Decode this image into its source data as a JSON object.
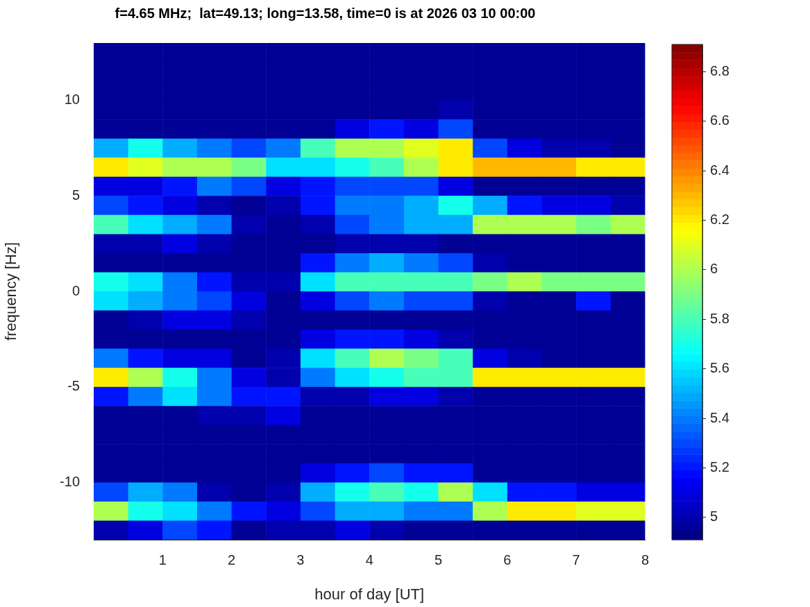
{
  "chart_data": {
    "type": "heatmap",
    "title": "f=4.65 MHz;  lat=49.13; long=13.58, time=0 is at 2026 03 10 00:00",
    "xlabel": "hour of day [UT]",
    "ylabel": "frequency [Hz]",
    "x": [
      0.25,
      0.75,
      1.25,
      1.75,
      2.25,
      2.75,
      3.25,
      3.75,
      4.25,
      4.75,
      5.25,
      5.75,
      6.25,
      6.75,
      7.25,
      7.75
    ],
    "y": [
      12.5,
      11.5,
      10.5,
      9.5,
      8.5,
      7.5,
      6.5,
      5.5,
      4.5,
      3.5,
      2.5,
      1.5,
      0.5,
      -0.5,
      -1.5,
      -2.5,
      -3.5,
      -4.5,
      -5.5,
      -6.5,
      -7.5,
      -8.5,
      -9.5,
      -10.5,
      -11.5,
      -12.5
    ],
    "cells": [
      [
        4.95,
        4.95,
        4.95,
        4.95,
        4.95,
        4.95,
        4.95,
        4.95,
        4.95,
        4.95,
        4.95,
        4.95,
        4.95,
        4.95,
        4.95,
        4.95
      ],
      [
        4.95,
        4.95,
        4.95,
        4.95,
        4.95,
        4.95,
        4.95,
        4.95,
        4.95,
        4.95,
        4.95,
        4.95,
        4.95,
        4.95,
        4.95,
        4.95
      ],
      [
        4.95,
        4.95,
        4.95,
        4.95,
        4.95,
        4.95,
        4.95,
        4.95,
        4.95,
        4.95,
        4.95,
        4.95,
        4.95,
        4.95,
        4.95,
        4.95
      ],
      [
        4.95,
        4.95,
        4.95,
        4.95,
        4.95,
        4.95,
        4.95,
        4.95,
        4.95,
        4.95,
        5.0,
        4.95,
        4.95,
        4.95,
        4.95,
        4.95
      ],
      [
        4.95,
        4.95,
        4.95,
        4.95,
        4.95,
        4.95,
        4.95,
        5.1,
        5.2,
        5.1,
        5.3,
        4.95,
        4.95,
        4.95,
        4.95,
        4.95
      ],
      [
        5.5,
        5.7,
        5.5,
        5.4,
        5.3,
        5.4,
        5.8,
        6.0,
        6.0,
        6.1,
        6.2,
        5.3,
        5.1,
        5.0,
        5.0,
        4.95
      ],
      [
        6.2,
        6.1,
        6.0,
        6.0,
        5.9,
        5.6,
        5.6,
        5.7,
        5.8,
        6.0,
        6.2,
        6.3,
        6.3,
        6.3,
        6.2,
        6.2
      ],
      [
        5.1,
        5.1,
        5.2,
        5.4,
        5.3,
        5.1,
        5.2,
        5.3,
        5.3,
        5.3,
        5.1,
        4.95,
        4.95,
        4.95,
        4.95,
        4.95
      ],
      [
        5.3,
        5.2,
        5.1,
        5.0,
        4.95,
        5.0,
        5.2,
        5.4,
        5.4,
        5.5,
        5.7,
        5.5,
        5.2,
        5.1,
        5.1,
        5.0
      ],
      [
        5.8,
        5.6,
        5.5,
        5.4,
        5.0,
        4.95,
        5.0,
        5.3,
        5.4,
        5.5,
        5.5,
        6.0,
        6.0,
        6.0,
        5.9,
        6.0
      ],
      [
        5.0,
        5.0,
        5.1,
        5.0,
        4.95,
        4.95,
        4.95,
        5.0,
        5.0,
        5.0,
        4.95,
        4.95,
        4.95,
        4.95,
        4.95,
        4.95
      ],
      [
        4.95,
        4.95,
        4.95,
        4.95,
        4.95,
        4.95,
        5.2,
        5.4,
        5.5,
        5.4,
        5.3,
        5.0,
        4.95,
        4.95,
        4.95,
        4.95
      ],
      [
        5.7,
        5.6,
        5.4,
        5.2,
        5.0,
        5.0,
        5.6,
        5.8,
        5.8,
        5.8,
        5.8,
        5.9,
        6.0,
        5.9,
        5.9,
        5.9
      ],
      [
        5.6,
        5.5,
        5.4,
        5.3,
        5.1,
        4.95,
        5.1,
        5.3,
        5.4,
        5.3,
        5.3,
        5.0,
        4.95,
        4.95,
        5.2,
        4.95
      ],
      [
        4.95,
        5.0,
        5.1,
        5.1,
        5.0,
        4.95,
        4.95,
        4.95,
        4.95,
        4.95,
        4.95,
        4.95,
        4.95,
        4.95,
        4.95,
        4.95
      ],
      [
        4.95,
        4.95,
        4.95,
        4.95,
        4.95,
        4.95,
        5.1,
        5.2,
        5.2,
        5.1,
        5.0,
        4.95,
        4.95,
        4.95,
        4.95,
        4.95
      ],
      [
        5.4,
        5.2,
        5.1,
        5.1,
        4.95,
        5.0,
        5.6,
        5.8,
        6.0,
        5.9,
        5.8,
        5.1,
        5.0,
        4.95,
        4.95,
        4.95
      ],
      [
        6.2,
        6.0,
        5.7,
        5.4,
        5.1,
        5.0,
        5.4,
        5.6,
        5.7,
        5.8,
        5.8,
        6.2,
        6.2,
        6.2,
        6.2,
        6.2
      ],
      [
        5.2,
        5.4,
        5.6,
        5.4,
        5.2,
        5.2,
        5.0,
        5.0,
        5.1,
        5.1,
        5.0,
        4.95,
        4.95,
        4.95,
        4.95,
        4.95
      ],
      [
        4.95,
        4.95,
        4.95,
        5.0,
        5.0,
        5.1,
        4.95,
        4.95,
        4.95,
        4.95,
        4.95,
        4.95,
        4.95,
        4.95,
        4.95,
        4.95
      ],
      [
        4.95,
        4.95,
        4.95,
        4.95,
        4.95,
        4.95,
        4.95,
        4.95,
        4.95,
        4.95,
        4.95,
        4.95,
        4.95,
        4.95,
        4.95,
        4.95
      ],
      [
        4.95,
        4.95,
        4.95,
        4.95,
        4.95,
        4.95,
        4.95,
        4.95,
        4.95,
        4.95,
        4.95,
        4.95,
        4.95,
        4.95,
        4.95,
        4.95
      ],
      [
        4.95,
        4.95,
        4.95,
        4.95,
        4.95,
        4.95,
        5.1,
        5.2,
        5.3,
        5.2,
        5.2,
        4.95,
        4.95,
        4.95,
        4.95,
        4.95
      ],
      [
        5.3,
        5.5,
        5.4,
        5.0,
        4.95,
        5.0,
        5.5,
        5.7,
        5.8,
        5.7,
        6.0,
        5.6,
        5.2,
        5.2,
        5.1,
        5.1
      ],
      [
        6.0,
        5.7,
        5.6,
        5.4,
        5.2,
        5.1,
        5.3,
        5.5,
        5.5,
        5.4,
        5.4,
        6.0,
        6.2,
        6.2,
        6.1,
        6.1
      ],
      [
        5.0,
        5.1,
        5.3,
        5.2,
        4.95,
        5.0,
        5.0,
        5.1,
        5.0,
        4.95,
        4.95,
        4.95,
        4.95,
        4.95,
        4.95,
        4.95
      ]
    ],
    "xlim": [
      0,
      8
    ],
    "xticks": [
      1,
      2,
      3,
      4,
      5,
      6,
      7,
      8
    ],
    "ylim": [
      -13,
      13
    ],
    "yticks": [
      -10,
      -5,
      0,
      5,
      10
    ],
    "clim": [
      4.91,
      6.91
    ],
    "cticks": [
      5,
      5.2,
      5.4,
      5.6,
      5.8,
      6,
      6.2,
      6.4,
      6.6,
      6.8
    ]
  }
}
